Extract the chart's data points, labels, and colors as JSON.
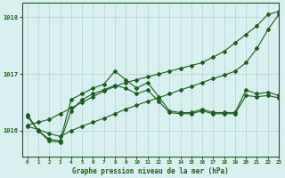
{
  "title": "Graphe pression niveau de la mer (hPa)",
  "background_color": "#d8f0f0",
  "grid_color": "#afd4d4",
  "line_color": "#1a5e1a",
  "xlim": [
    -0.5,
    23
  ],
  "ylim": [
    1015.55,
    1018.25
  ],
  "yticks": [
    1016,
    1017,
    1018
  ],
  "xticks": [
    0,
    1,
    2,
    3,
    4,
    5,
    6,
    7,
    8,
    9,
    10,
    11,
    12,
    13,
    14,
    15,
    16,
    17,
    18,
    19,
    20,
    21,
    22,
    23
  ],
  "series": [
    {
      "x": [
        0,
        1,
        2,
        3,
        4,
        5,
        6,
        7,
        8,
        9,
        10,
        11,
        12,
        13,
        14,
        15,
        16,
        17,
        18,
        19,
        20,
        21,
        22,
        23
      ],
      "y": [
        1016.1,
        1016.15,
        1016.2,
        1016.3,
        1016.4,
        1016.5,
        1016.6,
        1016.7,
        1016.78,
        1016.85,
        1016.9,
        1016.95,
        1017.0,
        1017.05,
        1017.1,
        1017.15,
        1017.2,
        1017.3,
        1017.4,
        1017.55,
        1017.7,
        1017.85,
        1018.05,
        1018.1
      ]
    },
    {
      "x": [
        0,
        1,
        2,
        3,
        4,
        5,
        6,
        7,
        8,
        9,
        10,
        11,
        12,
        13,
        14,
        15,
        16,
        17,
        18,
        19,
        20,
        21,
        22,
        23
      ],
      "y": [
        1016.25,
        1016.0,
        1015.85,
        1015.82,
        1016.55,
        1016.65,
        1016.75,
        1016.82,
        1017.05,
        1016.9,
        1016.75,
        1016.85,
        1016.6,
        1016.35,
        1016.32,
        1016.32,
        1016.38,
        1016.32,
        1016.32,
        1016.32,
        1016.72,
        1016.65,
        1016.68,
        1016.62
      ]
    },
    {
      "x": [
        0,
        1,
        2,
        3,
        4,
        5,
        6,
        7,
        8,
        9,
        10,
        11,
        12,
        13,
        14,
        15,
        16,
        17,
        18,
        19,
        20,
        21,
        22,
        23
      ],
      "y": [
        1016.28,
        1016.0,
        1015.82,
        1015.8,
        1016.35,
        1016.55,
        1016.65,
        1016.72,
        1016.8,
        1016.75,
        1016.65,
        1016.72,
        1016.52,
        1016.32,
        1016.3,
        1016.3,
        1016.35,
        1016.3,
        1016.3,
        1016.3,
        1016.62,
        1016.6,
        1016.62,
        1016.58
      ]
    },
    {
      "x": [
        0,
        1,
        2,
        3,
        4,
        5,
        6,
        7,
        8,
        9,
        10,
        11,
        12,
        13,
        14,
        15,
        16,
        17,
        18,
        19,
        20,
        21,
        22,
        23
      ],
      "y": [
        1016.08,
        1016.02,
        1015.95,
        1015.9,
        1016.0,
        1016.08,
        1016.15,
        1016.22,
        1016.3,
        1016.38,
        1016.45,
        1016.52,
        1016.58,
        1016.65,
        1016.72,
        1016.78,
        1016.85,
        1016.92,
        1016.98,
        1017.05,
        1017.2,
        1017.45,
        1017.78,
        1018.05
      ]
    }
  ]
}
